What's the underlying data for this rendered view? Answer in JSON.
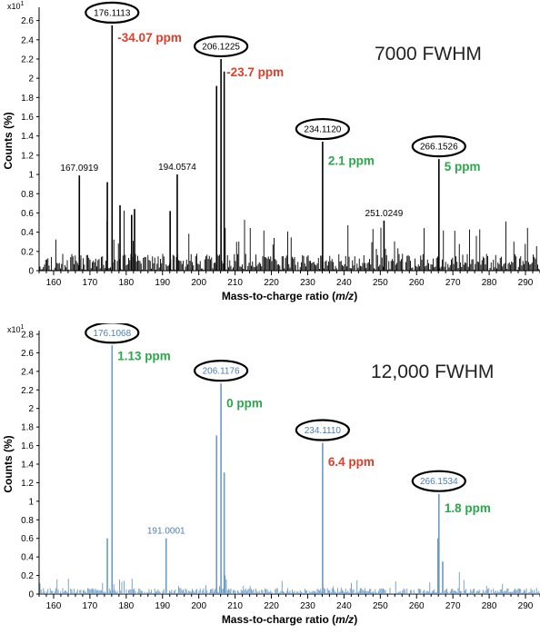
{
  "chart_data": [
    {
      "type": "bar",
      "title": "7000 FWHM",
      "scale_label": "x10",
      "scale_exp": "1",
      "xlabel_main": "Mass-to-charge ratio (",
      "xlabel_ital": "m/z",
      "xlabel_end": ")",
      "ylabel": "Counts (%)",
      "xlim": [
        156,
        294
      ],
      "ylim": [
        0,
        2.7
      ],
      "x_ticks": [
        160,
        170,
        180,
        190,
        200,
        210,
        220,
        230,
        240,
        250,
        260,
        270,
        280,
        290
      ],
      "y_ticks": [
        0,
        0.2,
        0.4,
        0.6,
        0.8,
        1,
        1.2,
        1.4,
        1.6,
        1.8,
        2,
        2.2,
        2.4,
        2.6
      ],
      "color": "#000000",
      "major_peaks": [
        {
          "x": 167.0919,
          "y": 0.99
        },
        {
          "x": 174.8,
          "y": 0.92
        },
        {
          "x": 176.1113,
          "y": 2.55
        },
        {
          "x": 178.3,
          "y": 0.68
        },
        {
          "x": 181.5,
          "y": 0.58
        },
        {
          "x": 182.3,
          "y": 0.64
        },
        {
          "x": 192.1,
          "y": 0.62
        },
        {
          "x": 194.0574,
          "y": 1.0
        },
        {
          "x": 204.9,
          "y": 1.92
        },
        {
          "x": 206.1225,
          "y": 2.2
        },
        {
          "x": 207.0,
          "y": 2.07
        },
        {
          "x": 234.112,
          "y": 1.34
        },
        {
          "x": 251.0249,
          "y": 0.52
        },
        {
          "x": 266.1526,
          "y": 1.16
        }
      ],
      "peak_labels": [
        {
          "text": "176.1113",
          "x": 176.1113,
          "y": 2.55,
          "circled": true
        },
        {
          "text": "206.1225",
          "x": 206.1225,
          "y": 2.2,
          "circled": true
        },
        {
          "text": "234.1120",
          "x": 234.112,
          "y": 1.34,
          "circled": true
        },
        {
          "text": "266.1526",
          "x": 266.1526,
          "y": 1.16,
          "circled": true
        },
        {
          "text": "167.0919",
          "x": 167.0919,
          "y": 0.99,
          "circled": false
        },
        {
          "text": "194.0574",
          "x": 194.0574,
          "y": 1.0,
          "circled": false
        },
        {
          "text": "251.0249",
          "x": 251.0249,
          "y": 0.52,
          "circled": false
        }
      ],
      "ppm_labels": [
        {
          "text": "-34.07 ppm",
          "color": "#e03c28",
          "x": 176.1113,
          "y": 2.38
        },
        {
          "text": "-23.7 ppm",
          "color": "#e03c28",
          "x": 206.1225,
          "y": 2.02
        },
        {
          "text": "2.1 ppm",
          "color": "#2aa84a",
          "x": 234.112,
          "y": 1.1
        },
        {
          "text": "5 ppm",
          "color": "#2aa84a",
          "x": 266.1526,
          "y": 1.04
        }
      ],
      "noise_seed": 11,
      "noise_level": 0.32
    },
    {
      "type": "bar",
      "title": "12,000 FWHM",
      "scale_label": "x10",
      "scale_exp": "1",
      "xlabel_main": "Mass-to-charge ratio (",
      "xlabel_ital": "m/z",
      "xlabel_end": ")",
      "ylabel": "Counts (%)",
      "xlim": [
        156,
        294
      ],
      "ylim": [
        0,
        2.8
      ],
      "x_ticks": [
        160,
        170,
        180,
        190,
        200,
        210,
        220,
        230,
        240,
        250,
        260,
        270,
        280,
        290
      ],
      "y_ticks": [
        0,
        0.2,
        0.4,
        0.6,
        0.8,
        1,
        1.2,
        1.4,
        1.6,
        1.8,
        2,
        2.2,
        2.4,
        2.6,
        2.8
      ],
      "color": "#6b9ac7",
      "major_peaks": [
        {
          "x": 174.8,
          "y": 0.6
        },
        {
          "x": 176.1068,
          "y": 2.68
        },
        {
          "x": 191.0001,
          "y": 0.6
        },
        {
          "x": 204.9,
          "y": 1.71
        },
        {
          "x": 206.1176,
          "y": 2.27
        },
        {
          "x": 207.0,
          "y": 1.31
        },
        {
          "x": 234.111,
          "y": 1.63
        },
        {
          "x": 265.9,
          "y": 0.6
        },
        {
          "x": 266.1534,
          "y": 1.08
        },
        {
          "x": 267.2,
          "y": 0.35
        }
      ],
      "peak_labels": [
        {
          "text": "176.1068",
          "x": 176.1068,
          "y": 2.68,
          "circled": true
        },
        {
          "text": "206.1176",
          "x": 206.1176,
          "y": 2.27,
          "circled": true
        },
        {
          "text": "234.1110",
          "x": 234.111,
          "y": 1.63,
          "circled": true
        },
        {
          "text": "266.1534",
          "x": 266.1534,
          "y": 1.08,
          "circled": true
        },
        {
          "text": "191.0001",
          "x": 191.0001,
          "y": 0.6,
          "circled": false
        }
      ],
      "ppm_labels": [
        {
          "text": "1.13 ppm",
          "color": "#2aa84a",
          "x": 176.1068,
          "y": 2.52
        },
        {
          "text": "0 ppm",
          "color": "#2aa84a",
          "x": 206.1176,
          "y": 2.01
        },
        {
          "text": "6.4 ppm",
          "color": "#e03c28",
          "x": 234.111,
          "y": 1.38
        },
        {
          "text": "1.8 ppm",
          "color": "#2aa84a",
          "x": 266.1534,
          "y": 0.88
        }
      ],
      "noise_seed": 29,
      "noise_level": 0.12
    }
  ]
}
